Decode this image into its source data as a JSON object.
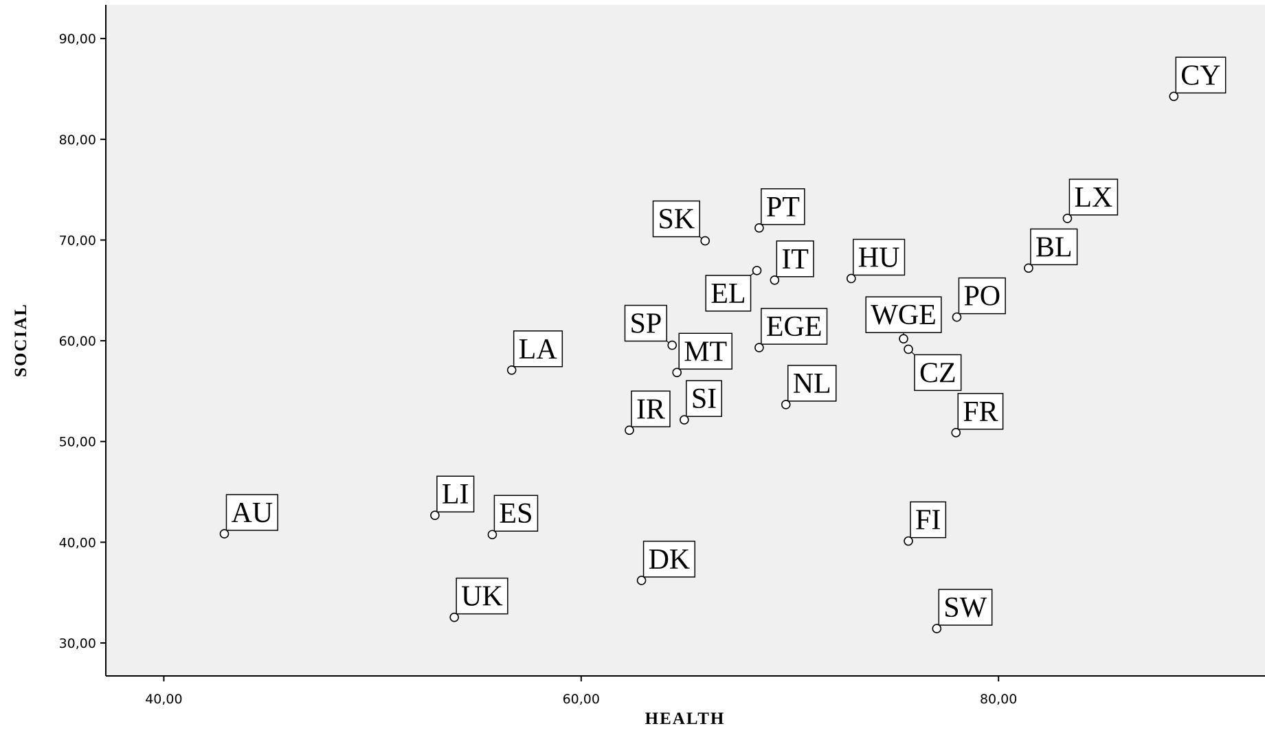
{
  "chart_data": {
    "type": "scatter",
    "x_label": "HEALTH",
    "y_label": "SOCIAL",
    "point_labels": [
      "CY",
      "LX",
      "BL",
      "PO",
      "WGE",
      "CZ",
      "FR",
      "FI",
      "SW",
      "HU",
      "NL",
      "IT",
      "EL",
      "PT",
      "EGE",
      "SK",
      "SP",
      "MT",
      "SI",
      "IR",
      "LA",
      "DK",
      "ES",
      "LI",
      "UK",
      "AU"
    ],
    "x": [
      88.4,
      83.3,
      81.44,
      78.0,
      75.45,
      75.68,
      77.96,
      75.68,
      77.04,
      72.94,
      69.81,
      69.27,
      68.42,
      68.53,
      68.53,
      65.94,
      64.36,
      64.59,
      64.94,
      62.31,
      56.67,
      62.89,
      55.74,
      52.99,
      53.92,
      42.9
    ],
    "y": [
      84.26,
      72.15,
      67.21,
      62.35,
      60.2,
      59.16,
      50.88,
      40.12,
      31.43,
      66.18,
      53.67,
      66.02,
      66.97,
      71.2,
      59.32,
      69.92,
      59.56,
      56.85,
      52.15,
      51.12,
      57.09,
      36.21,
      40.76,
      42.67,
      32.55,
      40.84
    ],
    "xlim": [
      37.22,
      92.77
    ],
    "ylim": [
      26.73,
      93.35
    ],
    "xticks": [
      {
        "value": 40,
        "label": "40,00"
      },
      {
        "value": 60,
        "label": "60,00"
      },
      {
        "value": 80,
        "label": "80,00"
      }
    ],
    "yticks": [
      {
        "value": 30,
        "label": "30,00"
      },
      {
        "value": 40,
        "label": "40,00"
      },
      {
        "value": 50,
        "label": "50,00"
      },
      {
        "value": 60,
        "label": "60,00"
      },
      {
        "value": 70,
        "label": "70,00"
      },
      {
        "value": 80,
        "label": "80,00"
      },
      {
        "value": 90,
        "label": "90,00"
      }
    ],
    "grid": false,
    "background": "#f0f0f0",
    "marker_color": "#000000"
  }
}
